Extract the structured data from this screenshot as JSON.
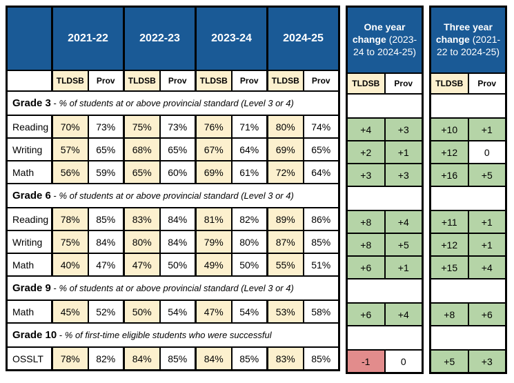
{
  "colors": {
    "header_blue": "#1A5A96",
    "tldsb_yellow": "#FCF0CE",
    "positive_green": "#B5D4A7",
    "negative_red": "#E28C8C",
    "border_black": "#000000",
    "header_text_white": "#FFFFFF",
    "body_text_black": "#000000"
  },
  "main_table": {
    "year_headers": [
      "2021-22",
      "2022-23",
      "2023-24",
      "2024-25"
    ],
    "subheaders": [
      "TLDSB",
      "Prov"
    ],
    "sections": [
      {
        "grade": "Grade 3",
        "separator": " - ",
        "description": "% of students at or above provincial standard (Level 3 or 4)",
        "rows": [
          {
            "label": "Reading",
            "scores": [
              "70%",
              "73%",
              "75%",
              "73%",
              "76%",
              "71%",
              "80%",
              "74%"
            ],
            "one_year": [
              "+4",
              "+3"
            ],
            "three_year": [
              "+10",
              "+1"
            ]
          },
          {
            "label": "Writing",
            "scores": [
              "57%",
              "65%",
              "68%",
              "65%",
              "67%",
              "64%",
              "69%",
              "65%"
            ],
            "one_year": [
              "+2",
              "+1"
            ],
            "three_year": [
              "+12",
              "0"
            ]
          },
          {
            "label": "Math",
            "scores": [
              "56%",
              "59%",
              "65%",
              "60%",
              "69%",
              "61%",
              "72%",
              "64%"
            ],
            "one_year": [
              "+3",
              "+3"
            ],
            "three_year": [
              "+16",
              "+5"
            ]
          }
        ]
      },
      {
        "grade": "Grade 6",
        "separator": " - ",
        "description": "% of students at or above provincial standard (Level 3 or 4)",
        "rows": [
          {
            "label": "Reading",
            "scores": [
              "78%",
              "85%",
              "83%",
              "84%",
              "81%",
              "82%",
              "89%",
              "86%"
            ],
            "one_year": [
              "+8",
              "+4"
            ],
            "three_year": [
              "+11",
              "+1"
            ]
          },
          {
            "label": "Writing",
            "scores": [
              "75%",
              "84%",
              "80%",
              "84%",
              "79%",
              "80%",
              "87%",
              "85%"
            ],
            "one_year": [
              "+8",
              "+5"
            ],
            "three_year": [
              "+12",
              "+1"
            ]
          },
          {
            "label": "Math",
            "scores": [
              "40%",
              "47%",
              "47%",
              "50%",
              "49%",
              "50%",
              "55%",
              "51%"
            ],
            "one_year": [
              "+6",
              "+1"
            ],
            "three_year": [
              "+15",
              "+4"
            ]
          }
        ]
      },
      {
        "grade": "Grade 9",
        "separator": "  - ",
        "description": "% of students at or above provincial standard (Level 3 or 4)",
        "rows": [
          {
            "label": "Math",
            "scores": [
              "45%",
              "52%",
              "50%",
              "54%",
              "47%",
              "54%",
              "53%",
              "58%"
            ],
            "one_year": [
              "+6",
              "+4"
            ],
            "three_year": [
              "+8",
              "+6"
            ]
          }
        ]
      },
      {
        "grade": "Grade 10",
        "separator": " - ",
        "description": "% of first-time eligible students who were successful",
        "rows": [
          {
            "label": "OSSLT",
            "scores": [
              "78%",
              "82%",
              "84%",
              "85%",
              "84%",
              "85%",
              "83%",
              "85%"
            ],
            "one_year": [
              "-1",
              "0"
            ],
            "three_year": [
              "+5",
              "+3"
            ]
          }
        ]
      }
    ]
  },
  "change_tables": [
    {
      "key": "one_year",
      "title": "One year change",
      "range": "(2023-24 to 2024-25)",
      "subheaders": [
        "TLDSB",
        "Prov"
      ]
    },
    {
      "key": "three_year",
      "title": "Three year change",
      "range": "(2021-22 to 2024-25)",
      "subheaders": [
        "TLDSB",
        "Prov"
      ]
    }
  ]
}
